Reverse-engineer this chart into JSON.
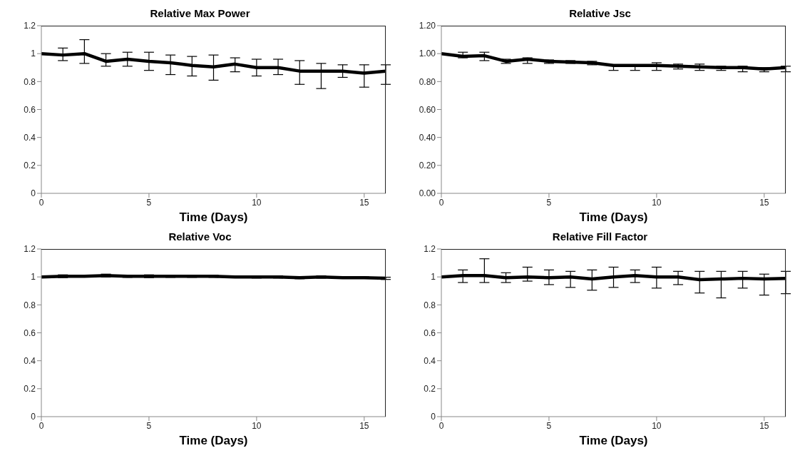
{
  "chart_data": [
    {
      "type": "line",
      "title": "Relative Max Power",
      "xlabel": "Time (Days)",
      "color": "#000000",
      "marker": "none",
      "x": [
        0,
        1,
        2,
        3,
        4,
        5,
        6,
        7,
        8,
        9,
        10,
        11,
        12,
        13,
        14,
        15,
        16
      ],
      "values": [
        1.0,
        0.99,
        1.0,
        0.945,
        0.96,
        0.945,
        0.935,
        0.915,
        0.905,
        0.925,
        0.9,
        0.9,
        0.875,
        0.875,
        0.875,
        0.86,
        0.875
      ],
      "errors": [
        null,
        [
          0.95,
          1.04
        ],
        [
          0.93,
          1.1
        ],
        [
          0.91,
          1.0
        ],
        [
          0.91,
          1.01
        ],
        [
          0.88,
          1.01
        ],
        [
          0.85,
          0.99
        ],
        [
          0.84,
          0.98
        ],
        [
          0.81,
          0.99
        ],
        [
          0.87,
          0.97
        ],
        [
          0.84,
          0.96
        ],
        [
          0.85,
          0.96
        ],
        [
          0.78,
          0.95
        ],
        [
          0.75,
          0.93
        ],
        [
          0.83,
          0.92
        ],
        [
          0.76,
          0.92
        ],
        [
          0.78,
          0.92
        ]
      ],
      "xlim": [
        0,
        16
      ],
      "xticks": [
        0,
        5,
        10,
        15
      ],
      "ylim": [
        0,
        1.2
      ],
      "yticks": [
        0,
        0.2,
        0.4,
        0.6,
        0.8,
        1,
        1.2
      ]
    },
    {
      "type": "line",
      "title": "Relative Jsc",
      "xlabel": "Time (Days)",
      "color": "#000000",
      "marker": "none",
      "x": [
        0,
        1,
        2,
        3,
        4,
        5,
        6,
        7,
        8,
        9,
        10,
        11,
        12,
        13,
        14,
        15,
        16
      ],
      "values": [
        1.0,
        0.98,
        0.985,
        0.945,
        0.96,
        0.945,
        0.94,
        0.935,
        0.915,
        0.915,
        0.915,
        0.91,
        0.905,
        0.9,
        0.9,
        0.89,
        0.9
      ],
      "errors": [
        null,
        [
          0.97,
          1.01
        ],
        [
          0.95,
          1.01
        ],
        [
          0.93,
          0.96
        ],
        [
          0.93,
          0.97
        ],
        [
          0.93,
          0.955
        ],
        [
          0.93,
          0.95
        ],
        [
          0.92,
          0.945
        ],
        [
          0.88,
          0.92
        ],
        [
          0.88,
          0.92
        ],
        [
          0.88,
          0.935
        ],
        [
          0.89,
          0.925
        ],
        [
          0.88,
          0.925
        ],
        [
          0.88,
          0.91
        ],
        [
          0.87,
          0.91
        ],
        [
          0.87,
          0.9
        ],
        [
          0.87,
          0.91
        ]
      ],
      "xlim": [
        0,
        16
      ],
      "xticks": [
        0,
        5,
        10,
        15
      ],
      "ylim": [
        0,
        1.2
      ],
      "yticks": [
        {
          "value": 0,
          "label": "0.00"
        },
        {
          "value": 0.2,
          "label": "0.20"
        },
        {
          "value": 0.4,
          "label": "0.40"
        },
        {
          "value": 0.6,
          "label": "0.60"
        },
        {
          "value": 0.8,
          "label": "0.80"
        },
        {
          "value": 1,
          "label": "1.00"
        },
        {
          "value": 1.2,
          "label": "1.20"
        }
      ]
    },
    {
      "type": "line",
      "title": "Relative Voc",
      "xlabel": "Time (Days)",
      "color": "#000000",
      "marker": "none",
      "x": [
        0,
        1,
        2,
        3,
        4,
        5,
        6,
        7,
        8,
        9,
        10,
        11,
        12,
        13,
        14,
        15,
        16
      ],
      "values": [
        1.0,
        1.005,
        1.005,
        1.01,
        1.005,
        1.005,
        1.005,
        1.005,
        1.005,
        1.0,
        1.0,
        1.0,
        0.995,
        1.0,
        0.995,
        0.995,
        0.99
      ],
      "errors": [
        null,
        0.01,
        0.005,
        0.01,
        0.008,
        0.01,
        0.008,
        0.008,
        0.008,
        0.006,
        0.008,
        0.008,
        0.008,
        0.008,
        0.006,
        0.006,
        0.008
      ],
      "xlim": [
        0,
        16
      ],
      "xticks": [
        0,
        5,
        10,
        15
      ],
      "ylim": [
        0,
        1.2
      ],
      "yticks": [
        0,
        0.2,
        0.4,
        0.6,
        0.8,
        1,
        1.2
      ]
    },
    {
      "type": "line",
      "title": "Relative Fill Factor",
      "xlabel": "Time (Days)",
      "color": "#000000",
      "marker": "none",
      "x": [
        0,
        1,
        2,
        3,
        4,
        5,
        6,
        7,
        8,
        9,
        10,
        11,
        12,
        13,
        14,
        15,
        16
      ],
      "values": [
        1.0,
        1.01,
        1.01,
        0.995,
        1.0,
        0.995,
        1.0,
        0.985,
        1.0,
        1.01,
        1.0,
        1.0,
        0.98,
        0.985,
        0.99,
        0.985,
        0.99
      ],
      "errors": [
        null,
        [
          0.96,
          1.05
        ],
        [
          0.96,
          1.13
        ],
        [
          0.96,
          1.03
        ],
        [
          0.97,
          1.07
        ],
        [
          0.945,
          1.05
        ],
        [
          0.925,
          1.04
        ],
        [
          0.905,
          1.05
        ],
        [
          0.925,
          1.07
        ],
        [
          0.96,
          1.05
        ],
        [
          0.92,
          1.07
        ],
        [
          0.945,
          1.04
        ],
        [
          0.885,
          1.04
        ],
        [
          0.85,
          1.04
        ],
        [
          0.92,
          1.04
        ],
        [
          0.87,
          1.02
        ],
        [
          0.88,
          1.04
        ]
      ],
      "xlim": [
        0,
        16
      ],
      "xticks": [
        0,
        5,
        10,
        15
      ],
      "ylim": [
        0,
        1.2
      ],
      "yticks": [
        0,
        0.2,
        0.4,
        0.6,
        0.8,
        1,
        1.2
      ]
    }
  ]
}
